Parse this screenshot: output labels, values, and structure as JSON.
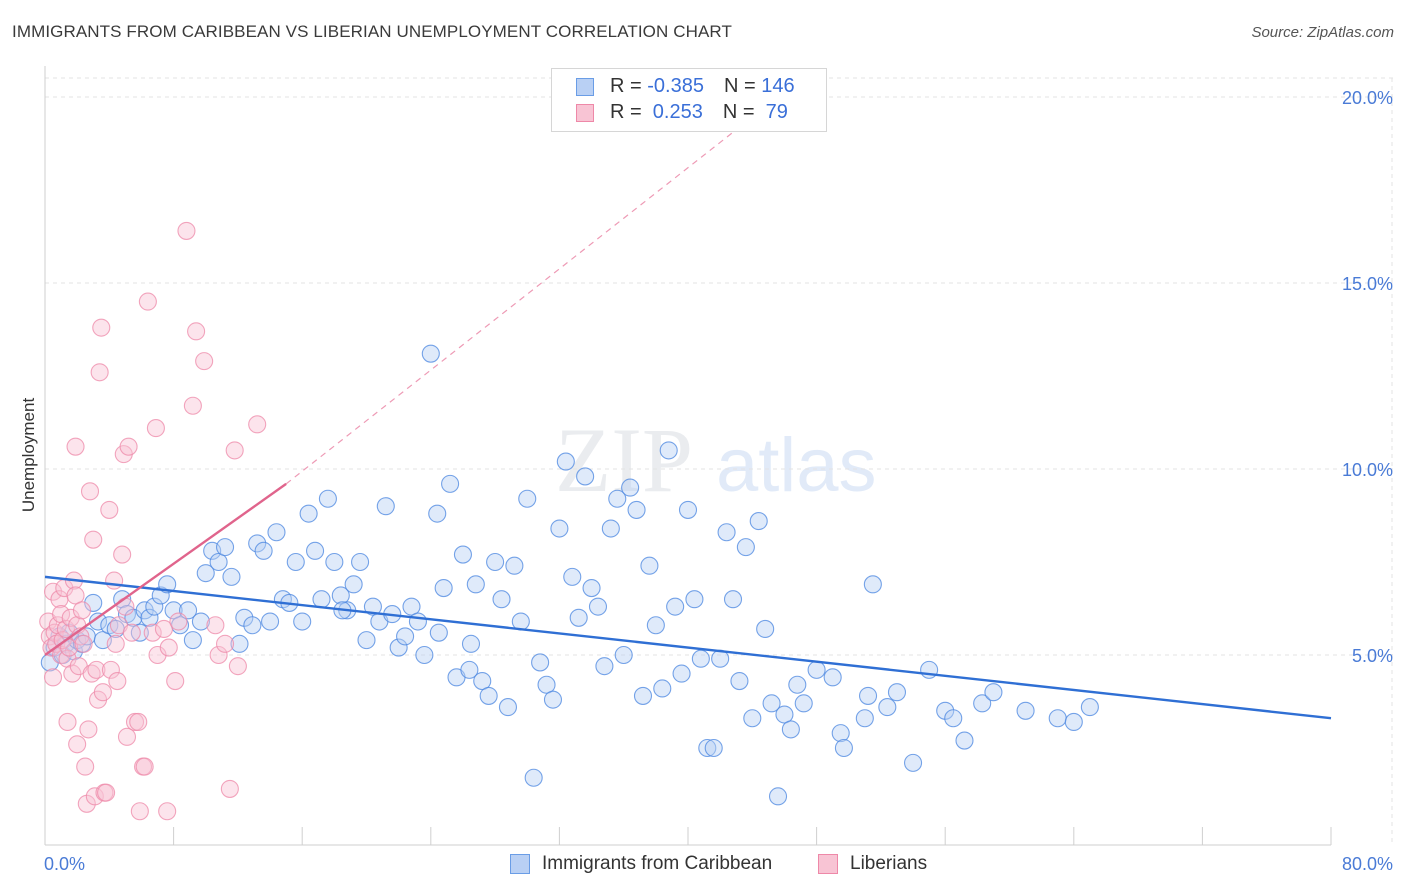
{
  "title": "IMMIGRANTS FROM CARIBBEAN VS LIBERIAN UNEMPLOYMENT CORRELATION CHART",
  "source": "Source: ZipAtlas.com",
  "watermark": {
    "zip": "ZIP",
    "atlas": "atlas"
  },
  "legend_top": {
    "rows": [
      {
        "r_label": "R = ",
        "r_value": "-0.385",
        "n_label": "N = ",
        "n_value": "146",
        "color": "#6a9de6",
        "fill": "#b9d0f4"
      },
      {
        "r_label": "R = ",
        "r_value": " 0.253",
        "n_label": "N = ",
        "n_value": " 79",
        "color": "#ee88a8",
        "fill": "#f8c4d4"
      }
    ]
  },
  "legend_bottom": [
    {
      "label": "Immigrants from Caribbean",
      "color": "#6a9de6",
      "fill": "#b9d0f4"
    },
    {
      "label": "Liberians",
      "color": "#ee88a8",
      "fill": "#f8c4d4"
    }
  ],
  "chart_data": {
    "type": "scatter",
    "xlabel": "",
    "ylabel": "Unemployment",
    "xlim": [
      0,
      80
    ],
    "ylim": [
      0,
      20
    ],
    "x_tick_labels": [
      "0.0%",
      "80.0%"
    ],
    "y_ticks": [
      5,
      10,
      15,
      20
    ],
    "y_tick_labels": [
      "5.0%",
      "10.0%",
      "15.0%",
      "20.0%"
    ],
    "grid": true,
    "legend_position": "top-center",
    "series": [
      {
        "name": "Immigrants from Caribbean",
        "color": "#4a86e0",
        "fill": "#b9d0f4",
        "trend": {
          "x1": 0,
          "y1": 7.1,
          "x2": 80,
          "y2": 3.3,
          "color": "#2f6fd4"
        },
        "points": [
          [
            0.3,
            4.8
          ],
          [
            0.6,
            5.2
          ],
          [
            0.9,
            5.5
          ],
          [
            1.1,
            5.0
          ],
          [
            1.3,
            5.3
          ],
          [
            1.5,
            5.6
          ],
          [
            1.8,
            5.1
          ],
          [
            2.0,
            5.4
          ],
          [
            2.3,
            5.3
          ],
          [
            2.6,
            5.5
          ],
          [
            3.0,
            6.4
          ],
          [
            3.3,
            5.9
          ],
          [
            3.6,
            5.4
          ],
          [
            4.0,
            5.8
          ],
          [
            4.4,
            5.7
          ],
          [
            4.8,
            6.5
          ],
          [
            5.1,
            6.1
          ],
          [
            5.5,
            6.0
          ],
          [
            5.9,
            5.6
          ],
          [
            6.2,
            6.2
          ],
          [
            6.5,
            6.0
          ],
          [
            6.8,
            6.3
          ],
          [
            7.2,
            6.6
          ],
          [
            7.6,
            6.9
          ],
          [
            8.0,
            6.2
          ],
          [
            8.4,
            5.8
          ],
          [
            8.9,
            6.2
          ],
          [
            9.2,
            5.4
          ],
          [
            9.7,
            5.9
          ],
          [
            10.0,
            7.2
          ],
          [
            10.4,
            7.8
          ],
          [
            10.8,
            7.5
          ],
          [
            11.2,
            7.9
          ],
          [
            11.6,
            7.1
          ],
          [
            12.1,
            5.3
          ],
          [
            12.4,
            6.0
          ],
          [
            12.9,
            5.8
          ],
          [
            13.2,
            8.0
          ],
          [
            13.6,
            7.8
          ],
          [
            14.0,
            5.9
          ],
          [
            14.4,
            8.3
          ],
          [
            14.8,
            6.5
          ],
          [
            15.2,
            6.4
          ],
          [
            15.6,
            7.5
          ],
          [
            16.0,
            5.9
          ],
          [
            16.4,
            8.8
          ],
          [
            16.8,
            7.8
          ],
          [
            17.2,
            6.5
          ],
          [
            17.6,
            9.2
          ],
          [
            18.0,
            7.5
          ],
          [
            18.4,
            6.6
          ],
          [
            18.8,
            6.2
          ],
          [
            19.2,
            6.9
          ],
          [
            19.6,
            7.5
          ],
          [
            20.0,
            5.4
          ],
          [
            20.4,
            6.3
          ],
          [
            20.8,
            5.9
          ],
          [
            21.2,
            9.0
          ],
          [
            21.6,
            6.1
          ],
          [
            22.0,
            5.2
          ],
          [
            22.4,
            5.5
          ],
          [
            22.8,
            6.3
          ],
          [
            23.2,
            5.9
          ],
          [
            23.6,
            5.0
          ],
          [
            24.0,
            13.1
          ],
          [
            24.4,
            8.8
          ],
          [
            24.8,
            6.8
          ],
          [
            25.2,
            9.6
          ],
          [
            25.6,
            4.4
          ],
          [
            26.0,
            7.7
          ],
          [
            26.4,
            4.6
          ],
          [
            26.8,
            6.9
          ],
          [
            27.2,
            4.3
          ],
          [
            27.6,
            3.9
          ],
          [
            28.0,
            7.5
          ],
          [
            28.4,
            6.5
          ],
          [
            28.8,
            3.6
          ],
          [
            29.2,
            7.4
          ],
          [
            29.6,
            5.9
          ],
          [
            30.0,
            9.2
          ],
          [
            30.4,
            1.7
          ],
          [
            30.8,
            4.8
          ],
          [
            31.2,
            4.2
          ],
          [
            31.6,
            3.8
          ],
          [
            32.0,
            8.4
          ],
          [
            32.4,
            10.2
          ],
          [
            32.8,
            7.1
          ],
          [
            33.2,
            6.0
          ],
          [
            33.6,
            9.8
          ],
          [
            34.0,
            6.8
          ],
          [
            34.4,
            6.3
          ],
          [
            34.8,
            4.7
          ],
          [
            35.2,
            8.4
          ],
          [
            35.6,
            9.2
          ],
          [
            36.0,
            5.0
          ],
          [
            36.4,
            9.5
          ],
          [
            36.8,
            8.9
          ],
          [
            37.2,
            3.9
          ],
          [
            37.6,
            7.4
          ],
          [
            38.0,
            5.8
          ],
          [
            38.4,
            4.1
          ],
          [
            38.8,
            10.5
          ],
          [
            39.2,
            6.3
          ],
          [
            39.6,
            4.5
          ],
          [
            40.0,
            8.9
          ],
          [
            40.4,
            6.5
          ],
          [
            40.8,
            4.9
          ],
          [
            41.2,
            2.5
          ],
          [
            41.6,
            2.5
          ],
          [
            42.0,
            4.9
          ],
          [
            42.4,
            8.3
          ],
          [
            42.8,
            6.5
          ],
          [
            43.2,
            4.3
          ],
          [
            43.6,
            7.9
          ],
          [
            44.0,
            3.3
          ],
          [
            44.4,
            8.6
          ],
          [
            44.8,
            5.7
          ],
          [
            45.2,
            3.7
          ],
          [
            45.6,
            1.2
          ],
          [
            46.0,
            3.4
          ],
          [
            46.4,
            3.0
          ],
          [
            46.8,
            4.2
          ],
          [
            47.2,
            3.7
          ],
          [
            48.0,
            4.6
          ],
          [
            49.0,
            4.4
          ],
          [
            49.5,
            2.9
          ],
          [
            49.7,
            2.5
          ],
          [
            51.0,
            3.3
          ],
          [
            51.2,
            3.9
          ],
          [
            51.5,
            6.9
          ],
          [
            52.4,
            3.6
          ],
          [
            53.0,
            4.0
          ],
          [
            54.0,
            2.1
          ],
          [
            55.0,
            4.6
          ],
          [
            56.0,
            3.5
          ],
          [
            56.5,
            3.3
          ],
          [
            57.2,
            2.7
          ],
          [
            58.3,
            3.7
          ],
          [
            59.0,
            4.0
          ],
          [
            61.0,
            3.5
          ],
          [
            63.0,
            3.3
          ],
          [
            64.0,
            3.2
          ],
          [
            65.0,
            3.6
          ],
          [
            24.5,
            5.6
          ],
          [
            18.5,
            6.2
          ],
          [
            26.5,
            5.3
          ]
        ]
      },
      {
        "name": "Liberians",
        "color": "#ee88a8",
        "fill": "#f8c4d4",
        "trend": {
          "x1": 0,
          "y1": 5.0,
          "x2": 15,
          "y2": 9.6,
          "color": "#e0648c"
        },
        "trend_extension": {
          "x1": 15,
          "y1": 9.6,
          "x2": 45,
          "y2": 19.8
        },
        "points": [
          [
            0.2,
            5.9
          ],
          [
            0.3,
            5.5
          ],
          [
            0.4,
            5.2
          ],
          [
            0.5,
            6.7
          ],
          [
            0.5,
            4.4
          ],
          [
            0.6,
            5.6
          ],
          [
            0.7,
            5.3
          ],
          [
            0.8,
            5.8
          ],
          [
            0.9,
            6.5
          ],
          [
            1.0,
            5.0
          ],
          [
            1.0,
            6.1
          ],
          [
            1.1,
            5.4
          ],
          [
            1.2,
            6.8
          ],
          [
            1.3,
            5.7
          ],
          [
            1.4,
            4.9
          ],
          [
            1.4,
            3.2
          ],
          [
            1.5,
            5.2
          ],
          [
            1.6,
            6.0
          ],
          [
            1.7,
            4.5
          ],
          [
            1.8,
            7.0
          ],
          [
            1.9,
            6.6
          ],
          [
            1.9,
            10.6
          ],
          [
            2.0,
            5.8
          ],
          [
            2.0,
            2.6
          ],
          [
            2.1,
            4.7
          ],
          [
            2.2,
            5.5
          ],
          [
            2.3,
            6.2
          ],
          [
            2.4,
            5.3
          ],
          [
            2.5,
            2.0
          ],
          [
            2.6,
            1.0
          ],
          [
            2.7,
            3.0
          ],
          [
            2.8,
            9.4
          ],
          [
            2.9,
            4.5
          ],
          [
            3.0,
            8.1
          ],
          [
            3.1,
            1.2
          ],
          [
            3.2,
            4.6
          ],
          [
            3.3,
            3.8
          ],
          [
            3.4,
            12.6
          ],
          [
            3.5,
            13.8
          ],
          [
            3.6,
            4.0
          ],
          [
            3.7,
            1.3
          ],
          [
            3.8,
            1.3
          ],
          [
            4.0,
            8.9
          ],
          [
            4.1,
            4.6
          ],
          [
            4.3,
            7.0
          ],
          [
            4.4,
            5.3
          ],
          [
            4.5,
            4.3
          ],
          [
            4.6,
            5.8
          ],
          [
            4.8,
            7.7
          ],
          [
            4.9,
            10.4
          ],
          [
            5.0,
            6.3
          ],
          [
            5.1,
            2.8
          ],
          [
            5.2,
            10.6
          ],
          [
            5.4,
            5.6
          ],
          [
            5.6,
            3.2
          ],
          [
            5.8,
            3.2
          ],
          [
            5.9,
            0.8
          ],
          [
            6.1,
            2.0
          ],
          [
            6.2,
            2.0
          ],
          [
            6.4,
            14.5
          ],
          [
            6.7,
            5.6
          ],
          [
            6.9,
            11.1
          ],
          [
            7.0,
            5.0
          ],
          [
            7.4,
            5.7
          ],
          [
            7.6,
            0.8
          ],
          [
            7.7,
            5.2
          ],
          [
            8.1,
            4.3
          ],
          [
            8.3,
            5.9
          ],
          [
            8.8,
            16.4
          ],
          [
            9.2,
            11.7
          ],
          [
            9.4,
            13.7
          ],
          [
            9.9,
            12.9
          ],
          [
            10.6,
            5.8
          ],
          [
            10.8,
            5.0
          ],
          [
            11.2,
            5.3
          ],
          [
            11.5,
            1.4
          ],
          [
            11.8,
            10.5
          ],
          [
            12.0,
            4.7
          ],
          [
            13.2,
            11.2
          ]
        ]
      }
    ]
  }
}
